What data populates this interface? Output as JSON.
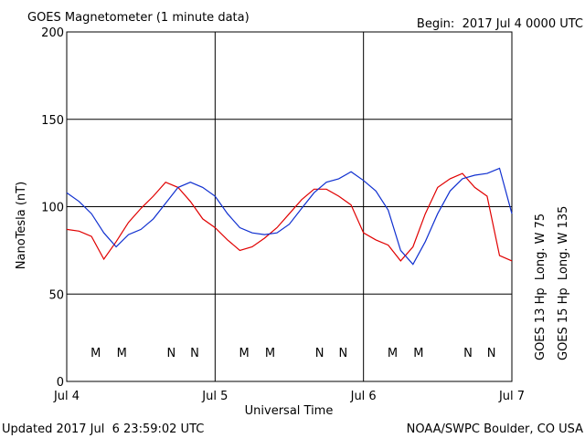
{
  "chart_data": {
    "type": "line",
    "title": "GOES Magnetometer (1 minute data)",
    "subtitle": "Begin:  2017 Jul 4 0000 UTC",
    "y_label": "NanoTesla (nT)",
    "x_label": "Universal Time",
    "footer_left": "Updated 2017 Jul  6 23:59:02 UTC",
    "footer_right": "NOAA/SWPC Boulder, CO USA",
    "x": [
      0,
      2,
      4,
      6,
      8,
      10,
      12,
      14,
      16,
      18,
      20,
      22,
      24,
      26,
      28,
      30,
      32,
      34,
      36,
      38,
      40,
      42,
      44,
      46,
      48,
      50,
      52,
      54,
      56,
      58,
      60,
      62,
      64,
      66,
      68,
      70,
      72
    ],
    "xlim": [
      0,
      72
    ],
    "xticks": [
      {
        "value": 0,
        "label": "Jul 4"
      },
      {
        "value": 24,
        "label": "Jul 5"
      },
      {
        "value": 48,
        "label": "Jul 6"
      },
      {
        "value": 72,
        "label": "Jul 7"
      }
    ],
    "ylim": [
      0,
      200
    ],
    "yticks": [
      0,
      50,
      100,
      150,
      200
    ],
    "grid": true,
    "series": [
      {
        "name": "GOES 13 Hp  Long. W 75",
        "color": "#e00000",
        "values": [
          87,
          86,
          83,
          70,
          80,
          91,
          99,
          106,
          114,
          111,
          103,
          93,
          88,
          81,
          75,
          77,
          82,
          88,
          96,
          104,
          110,
          110,
          106,
          101,
          85,
          81,
          78,
          69,
          77,
          96,
          111,
          116,
          119,
          111,
          106,
          72,
          69
        ]
      },
      {
        "name": "GOES 15 Hp  Long. W 135",
        "color": "#1030d0",
        "values": [
          108,
          103,
          96,
          85,
          77,
          84,
          87,
          93,
          102,
          111,
          114,
          111,
          106,
          96,
          88,
          85,
          84,
          85,
          90,
          99,
          108,
          114,
          116,
          120,
          115,
          109,
          98,
          75,
          67,
          80,
          96,
          109,
          116,
          118,
          119,
          122,
          96
        ]
      }
    ],
    "annotations": [
      {
        "text": "M",
        "x": 4.7,
        "color": "#e00000"
      },
      {
        "text": "M",
        "x": 8.9,
        "color": "#1030d0"
      },
      {
        "text": "N",
        "x": 16.9,
        "color": "#e00000"
      },
      {
        "text": "N",
        "x": 20.7,
        "color": "#1030d0"
      },
      {
        "text": "M",
        "x": 28.7,
        "color": "#e00000"
      },
      {
        "text": "M",
        "x": 32.9,
        "color": "#1030d0"
      },
      {
        "text": "N",
        "x": 40.9,
        "color": "#e00000"
      },
      {
        "text": "N",
        "x": 44.7,
        "color": "#1030d0"
      },
      {
        "text": "M",
        "x": 52.7,
        "color": "#e00000"
      },
      {
        "text": "M",
        "x": 56.9,
        "color": "#1030d0"
      },
      {
        "text": "N",
        "x": 64.9,
        "color": "#e00000"
      },
      {
        "text": "N",
        "x": 68.7,
        "color": "#1030d0"
      }
    ]
  }
}
